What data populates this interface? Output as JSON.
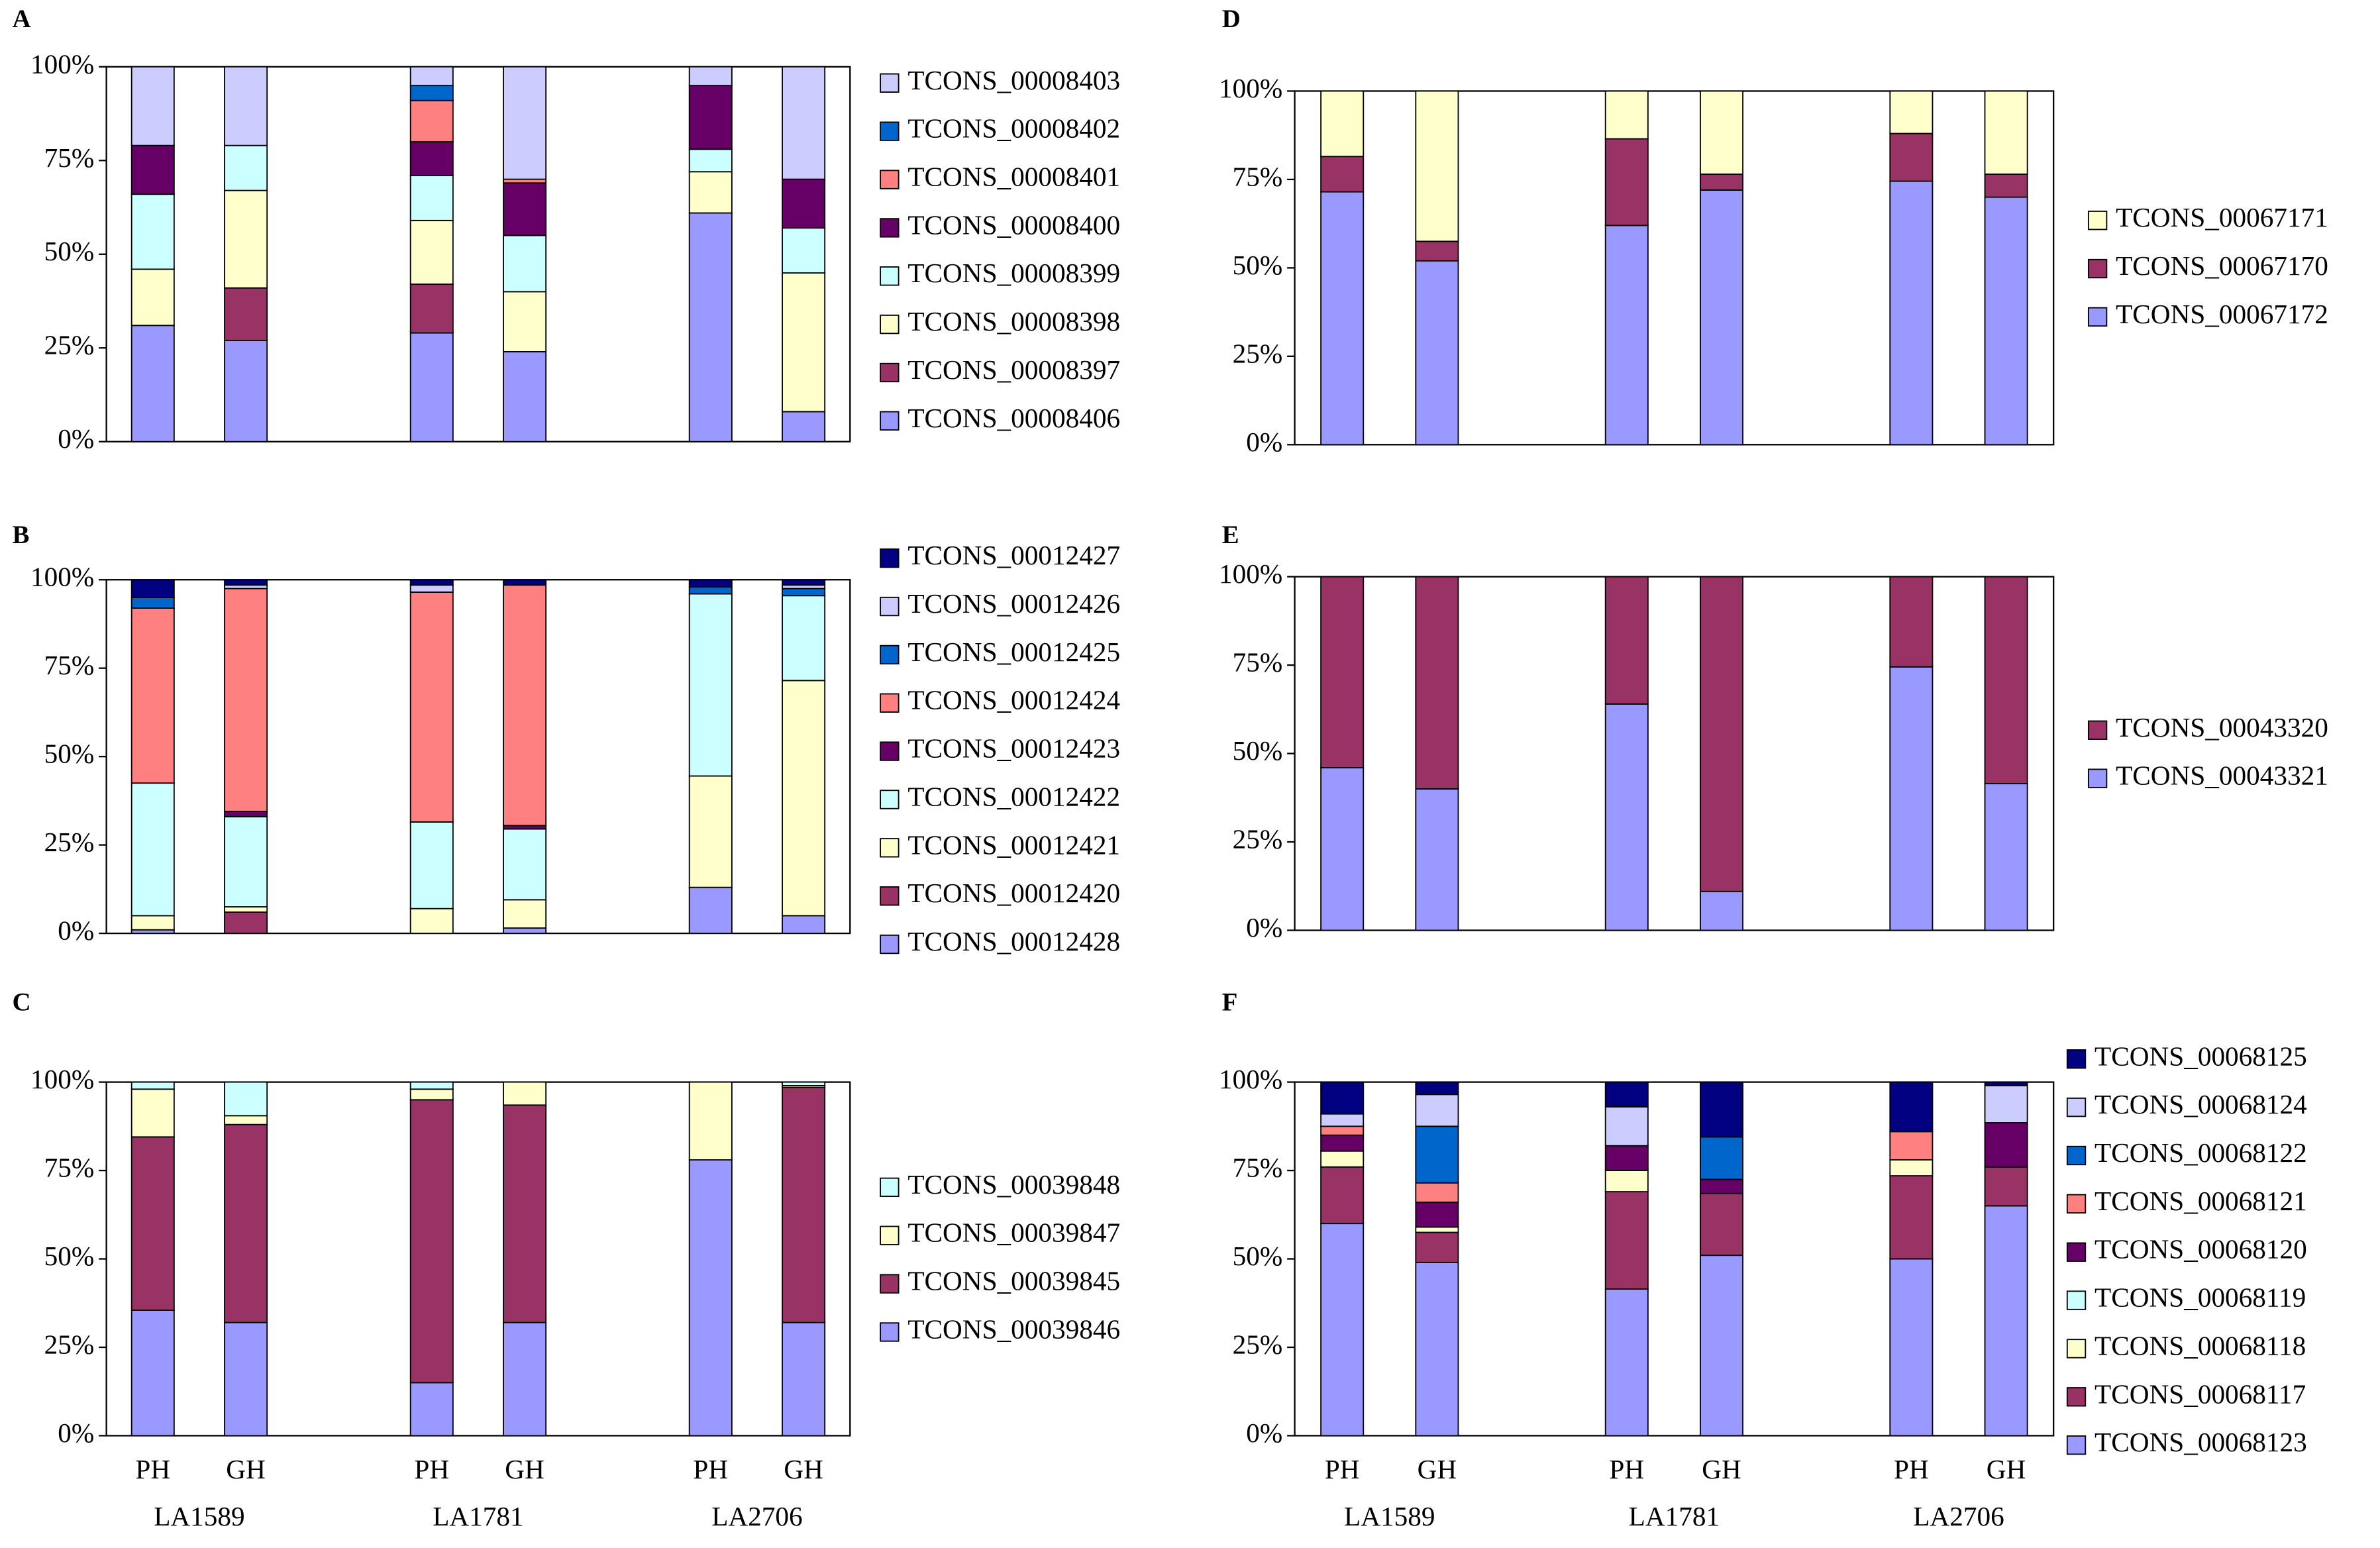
{
  "chart_data": [
    {
      "type": "stacked_bar",
      "panel": "A",
      "ylim": [
        0,
        100
      ],
      "yticks": [
        {
          "value": 0,
          "label": "0%"
        },
        {
          "value": 25,
          "label": "25%"
        },
        {
          "value": 50,
          "label": "50%"
        },
        {
          "value": 75,
          "label": "75%"
        },
        {
          "value": 100,
          "label": "100%"
        }
      ],
      "series": [
        {
          "name": "TCONS_00008406",
          "color": "#9999ff",
          "values": [
            31,
            27,
            null,
            29,
            24,
            null,
            61,
            8
          ]
        },
        {
          "name": "TCONS_00008397",
          "color": "#993366",
          "values": [
            0,
            14,
            null,
            13,
            0,
            null,
            0,
            0
          ]
        },
        {
          "name": "TCONS_00008398",
          "color": "#ffffcc",
          "values": [
            15,
            26,
            null,
            17,
            16,
            null,
            11,
            37
          ]
        },
        {
          "name": "TCONS_00008399",
          "color": "#ccffff",
          "values": [
            20,
            12,
            null,
            12,
            15,
            null,
            6,
            12
          ]
        },
        {
          "name": "TCONS_00008400",
          "color": "#660066",
          "values": [
            13,
            0,
            null,
            9,
            14,
            null,
            17,
            13
          ]
        },
        {
          "name": "TCONS_00008401",
          "color": "#ff8080",
          "values": [
            0,
            0,
            null,
            11,
            1,
            null,
            0,
            0
          ]
        },
        {
          "name": "TCONS_00008402",
          "color": "#0066cc",
          "values": [
            0,
            0,
            null,
            4,
            0,
            null,
            0,
            0
          ]
        },
        {
          "name": "TCONS_00008403",
          "color": "#ccccff",
          "values": [
            21,
            21,
            null,
            5,
            30,
            null,
            5,
            30
          ]
        }
      ]
    },
    {
      "type": "stacked_bar",
      "panel": "B",
      "ylim": [
        0,
        100
      ],
      "yticks": [
        {
          "value": 0,
          "label": "0%"
        },
        {
          "value": 25,
          "label": "25%"
        },
        {
          "value": 50,
          "label": "50%"
        },
        {
          "value": 75,
          "label": "75%"
        },
        {
          "value": 100,
          "label": "100%"
        }
      ],
      "series": [
        {
          "name": "TCONS_00012428",
          "color": "#9999ff",
          "values": [
            1,
            0,
            null,
            0,
            1.5,
            null,
            13,
            5
          ]
        },
        {
          "name": "TCONS_00012420",
          "color": "#993366",
          "values": [
            0,
            6,
            null,
            0,
            0,
            null,
            0,
            0
          ]
        },
        {
          "name": "TCONS_00012421",
          "color": "#ffffcc",
          "values": [
            4,
            1.5,
            null,
            7,
            8,
            null,
            31.5,
            66.5
          ]
        },
        {
          "name": "TCONS_00012422",
          "color": "#ccffff",
          "values": [
            37.5,
            25.5,
            null,
            24.5,
            20,
            null,
            51.5,
            24
          ]
        },
        {
          "name": "TCONS_00012423",
          "color": "#660066",
          "values": [
            0,
            1.5,
            null,
            0,
            1,
            null,
            0,
            0
          ]
        },
        {
          "name": "TCONS_00012424",
          "color": "#ff8080",
          "values": [
            49.5,
            63,
            null,
            65,
            68,
            null,
            0,
            0
          ]
        },
        {
          "name": "TCONS_00012425",
          "color": "#0066cc",
          "values": [
            3,
            0,
            null,
            0,
            0,
            null,
            2,
            2
          ]
        },
        {
          "name": "TCONS_00012426",
          "color": "#ccccff",
          "values": [
            0,
            1,
            null,
            2,
            0,
            null,
            0,
            1
          ]
        },
        {
          "name": "TCONS_00012427",
          "color": "#000080",
          "values": [
            5,
            1.5,
            null,
            1.5,
            1.5,
            null,
            2,
            1.5
          ]
        }
      ]
    },
    {
      "type": "stacked_bar",
      "panel": "C",
      "ylim": [
        0,
        100
      ],
      "yticks": [
        {
          "value": 0,
          "label": "0%"
        },
        {
          "value": 25,
          "label": "25%"
        },
        {
          "value": 50,
          "label": "50%"
        },
        {
          "value": 75,
          "label": "75%"
        },
        {
          "value": 100,
          "label": "100%"
        }
      ],
      "categories": [
        "PH",
        "GH",
        null,
        "PH",
        "GH",
        null,
        "PH",
        "GH"
      ],
      "groups": [
        "LA1589",
        "LA1781",
        "LA2706"
      ],
      "series": [
        {
          "name": "TCONS_00039846",
          "color": "#9999ff",
          "values": [
            35.5,
            32,
            null,
            15,
            32,
            null,
            78,
            32
          ]
        },
        {
          "name": "TCONS_00039845",
          "color": "#993366",
          "values": [
            49,
            56,
            null,
            80,
            61.5,
            null,
            0,
            66.5
          ]
        },
        {
          "name": "TCONS_00039847",
          "color": "#ffffcc",
          "values": [
            13.5,
            2.5,
            null,
            3,
            6.5,
            null,
            22,
            0.5
          ]
        },
        {
          "name": "TCONS_00039848",
          "color": "#ccffff",
          "values": [
            2,
            9.5,
            null,
            2,
            0,
            null,
            0,
            1
          ]
        }
      ]
    },
    {
      "type": "stacked_bar",
      "panel": "D",
      "ylim": [
        0,
        100
      ],
      "yticks": [
        {
          "value": 0,
          "label": "0%"
        },
        {
          "value": 25,
          "label": "25%"
        },
        {
          "value": 50,
          "label": "50%"
        },
        {
          "value": 75,
          "label": "75%"
        },
        {
          "value": 100,
          "label": "100%"
        }
      ],
      "series": [
        {
          "name": "TCONS_00067172",
          "color": "#9999ff",
          "values": [
            71.5,
            52,
            null,
            62,
            72,
            null,
            74.5,
            70
          ]
        },
        {
          "name": "TCONS_00067170",
          "color": "#993366",
          "values": [
            10,
            5.5,
            null,
            24.5,
            4.5,
            null,
            13.5,
            6.5
          ]
        },
        {
          "name": "TCONS_00067171",
          "color": "#ffffcc",
          "values": [
            18.5,
            42.5,
            null,
            13.5,
            23.5,
            null,
            12,
            23.5
          ]
        }
      ]
    },
    {
      "type": "stacked_bar",
      "panel": "E",
      "ylim": [
        0,
        100
      ],
      "yticks": [
        {
          "value": 0,
          "label": "0%"
        },
        {
          "value": 25,
          "label": "25%"
        },
        {
          "value": 50,
          "label": "50%"
        },
        {
          "value": 75,
          "label": "75%"
        },
        {
          "value": 100,
          "label": "100%"
        }
      ],
      "series": [
        {
          "name": "TCONS_00043321",
          "color": "#9999ff",
          "values": [
            46,
            40,
            null,
            64,
            11,
            null,
            74.5,
            41.5
          ]
        },
        {
          "name": "TCONS_00043320",
          "color": "#993366",
          "values": [
            54,
            60,
            null,
            36,
            89,
            null,
            25.5,
            58.5
          ]
        }
      ]
    },
    {
      "type": "stacked_bar",
      "panel": "F",
      "ylim": [
        0,
        100
      ],
      "yticks": [
        {
          "value": 0,
          "label": "0%"
        },
        {
          "value": 25,
          "label": "25%"
        },
        {
          "value": 50,
          "label": "50%"
        },
        {
          "value": 75,
          "label": "75%"
        },
        {
          "value": 100,
          "label": "100%"
        }
      ],
      "categories": [
        "PH",
        "GH",
        null,
        "PH",
        "GH",
        null,
        "PH",
        "GH"
      ],
      "groups": [
        "LA1589",
        "LA1781",
        "LA2706"
      ],
      "series": [
        {
          "name": "TCONS_00068123",
          "color": "#9999ff",
          "values": [
            60,
            49,
            null,
            41.5,
            51,
            null,
            50,
            65
          ]
        },
        {
          "name": "TCONS_00068117",
          "color": "#993366",
          "values": [
            16,
            8.5,
            null,
            27.5,
            17.5,
            null,
            23.5,
            11
          ]
        },
        {
          "name": "TCONS_00068118",
          "color": "#ffffcc",
          "values": [
            4.5,
            1.5,
            null,
            6,
            0,
            null,
            4.5,
            0
          ]
        },
        {
          "name": "TCONS_00068119",
          "color": "#ccffff",
          "values": [
            0,
            0,
            null,
            0,
            0,
            null,
            0,
            0
          ]
        },
        {
          "name": "TCONS_00068120",
          "color": "#660066",
          "values": [
            4.5,
            7,
            null,
            7,
            4,
            null,
            0,
            12.5
          ]
        },
        {
          "name": "TCONS_00068121",
          "color": "#ff8080",
          "values": [
            2.5,
            5.5,
            null,
            0,
            0,
            null,
            8,
            0
          ]
        },
        {
          "name": "TCONS_00068122",
          "color": "#0066cc",
          "values": [
            0,
            16,
            null,
            0,
            12,
            null,
            0,
            0
          ]
        },
        {
          "name": "TCONS_00068124",
          "color": "#ccccff",
          "values": [
            3.5,
            9,
            null,
            11,
            0,
            null,
            0,
            10.5
          ]
        },
        {
          "name": "TCONS_00068125",
          "color": "#000080",
          "values": [
            9,
            3.5,
            null,
            7,
            15.5,
            null,
            14,
            1
          ]
        }
      ]
    }
  ]
}
